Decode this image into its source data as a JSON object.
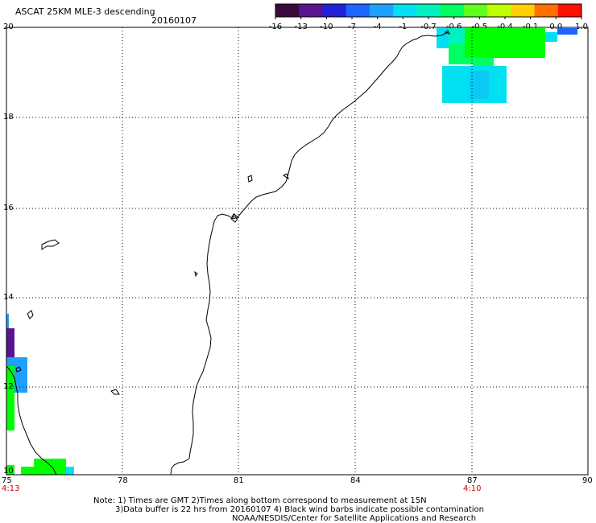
{
  "header": {
    "title": "ASCAT 25KM MLE-3 descending",
    "date": "20160107"
  },
  "colorbar": {
    "labels": [
      "-16",
      "-13",
      "-10",
      "-7",
      "-4",
      "-1",
      "-0.7",
      "-0.6",
      "-0.5",
      "-0.4",
      "-0.1",
      "0.0",
      "1.0"
    ],
    "colors": [
      "#3a0a3a",
      "#5a1490",
      "#2020d8",
      "#1e64ff",
      "#1ea0ff",
      "#00e0f0",
      "#00f0c0",
      "#00ff60",
      "#60ff20",
      "#c0ff00",
      "#ffd000",
      "#ff7000",
      "#ff1000"
    ]
  },
  "map": {
    "lat_labels": [
      "20",
      "18",
      "16",
      "14",
      "12",
      "10"
    ],
    "lon_labels": [
      "75",
      "78",
      "81",
      "84",
      "87",
      "90"
    ],
    "time_labels": {
      "left": "4:13",
      "right": "4:10"
    },
    "colors": {
      "grid": "#000000",
      "coast": "#000000",
      "time": "#cc0000"
    }
  },
  "footer": {
    "line1": "Note: 1) Times are GMT 2)Times along bottom correspond to measurement at 15N",
    "line2": "3)Data buffer is 22 hrs from 20160107 4) Black wind barbs indicate possible contamination",
    "line3": "NOAA/NESDIS/Center for Satellite Applications and Research"
  }
}
